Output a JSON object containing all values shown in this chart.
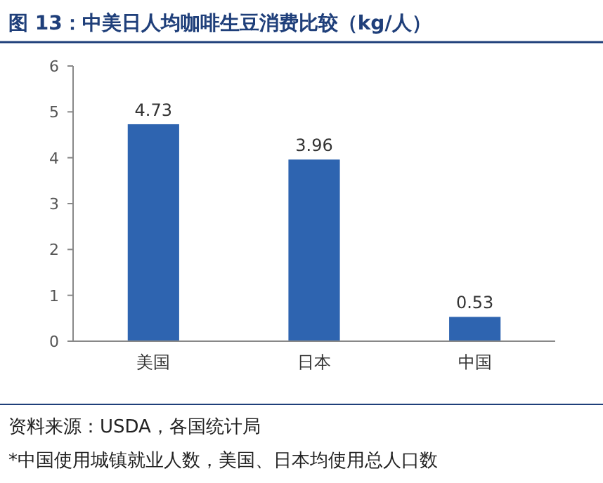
{
  "chart_data": {
    "type": "bar",
    "title": "图 13：中美日人均咖啡生豆消费比较（kg/人）",
    "categories": [
      "美国",
      "日本",
      "中国"
    ],
    "values": [
      4.73,
      3.96,
      0.53
    ],
    "color": "#2e64b0",
    "ylim": [
      0,
      6
    ],
    "yticks": [
      0,
      1,
      2,
      3,
      4,
      5,
      6
    ],
    "data_labels": true,
    "annotations": [
      "资料来源：USDA，各国统计局",
      "*中国使用城镇就业人数，美国、日本均使用总人口数"
    ]
  }
}
